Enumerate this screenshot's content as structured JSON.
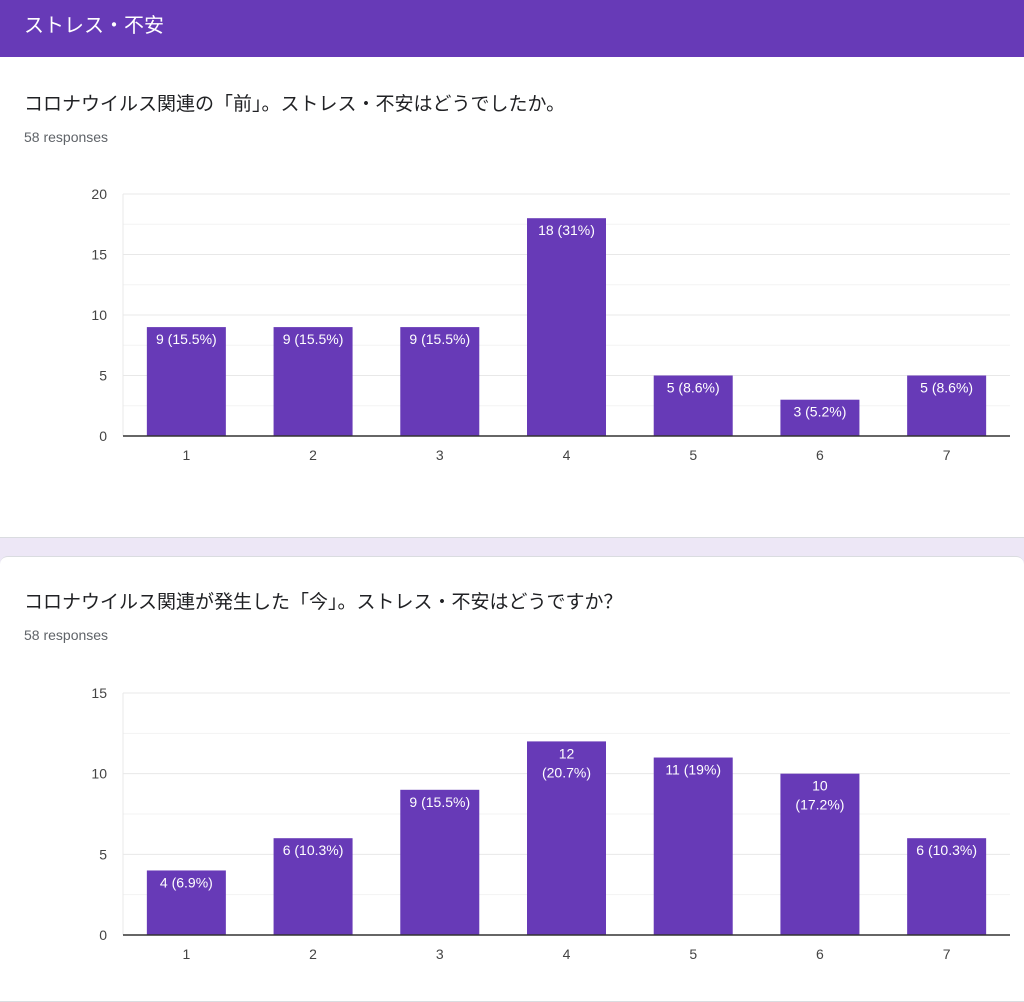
{
  "header": {
    "title": "ストレス・不安"
  },
  "questions": [
    {
      "title": "コロナウイルス関連の「前」。ストレス・不安はどうでしたか。",
      "responses": "58 responses"
    },
    {
      "title": "コロナウイルス関連が発生した「今」。ストレス・不安はどうですか？",
      "responses": "58 responses"
    }
  ],
  "colors": {
    "bar": "#673ab7",
    "header": "#673ab7",
    "grid": "#e8e8e8",
    "axis": "#333333"
  },
  "chart_data": [
    {
      "type": "bar",
      "categories": [
        "1",
        "2",
        "3",
        "4",
        "5",
        "6",
        "7"
      ],
      "values": [
        9,
        9,
        9,
        18,
        5,
        3,
        5
      ],
      "data_labels": [
        [
          "9 (15.5%)"
        ],
        [
          "9 (15.5%)"
        ],
        [
          "9 (15.5%)"
        ],
        [
          "18 (31%)"
        ],
        [
          "5 (8.6%)"
        ],
        [
          "3 (5.2%)"
        ],
        [
          "5 (8.6%)"
        ]
      ],
      "yticks": [
        0,
        5,
        10,
        15,
        20
      ],
      "ylim": [
        0,
        20
      ],
      "minor_gridlines": true
    },
    {
      "type": "bar",
      "categories": [
        "1",
        "2",
        "3",
        "4",
        "5",
        "6",
        "7"
      ],
      "values": [
        4,
        6,
        9,
        12,
        11,
        10,
        6
      ],
      "data_labels": [
        [
          "4 (6.9%)"
        ],
        [
          "6 (10.3%)"
        ],
        [
          "9 (15.5%)"
        ],
        [
          "12",
          "(20.7%)"
        ],
        [
          "11 (19%)"
        ],
        [
          "10",
          "(17.2%)"
        ],
        [
          "6 (10.3%)"
        ]
      ],
      "yticks": [
        0,
        5,
        10,
        15
      ],
      "ylim": [
        0,
        15
      ],
      "minor_gridlines": true
    }
  ]
}
